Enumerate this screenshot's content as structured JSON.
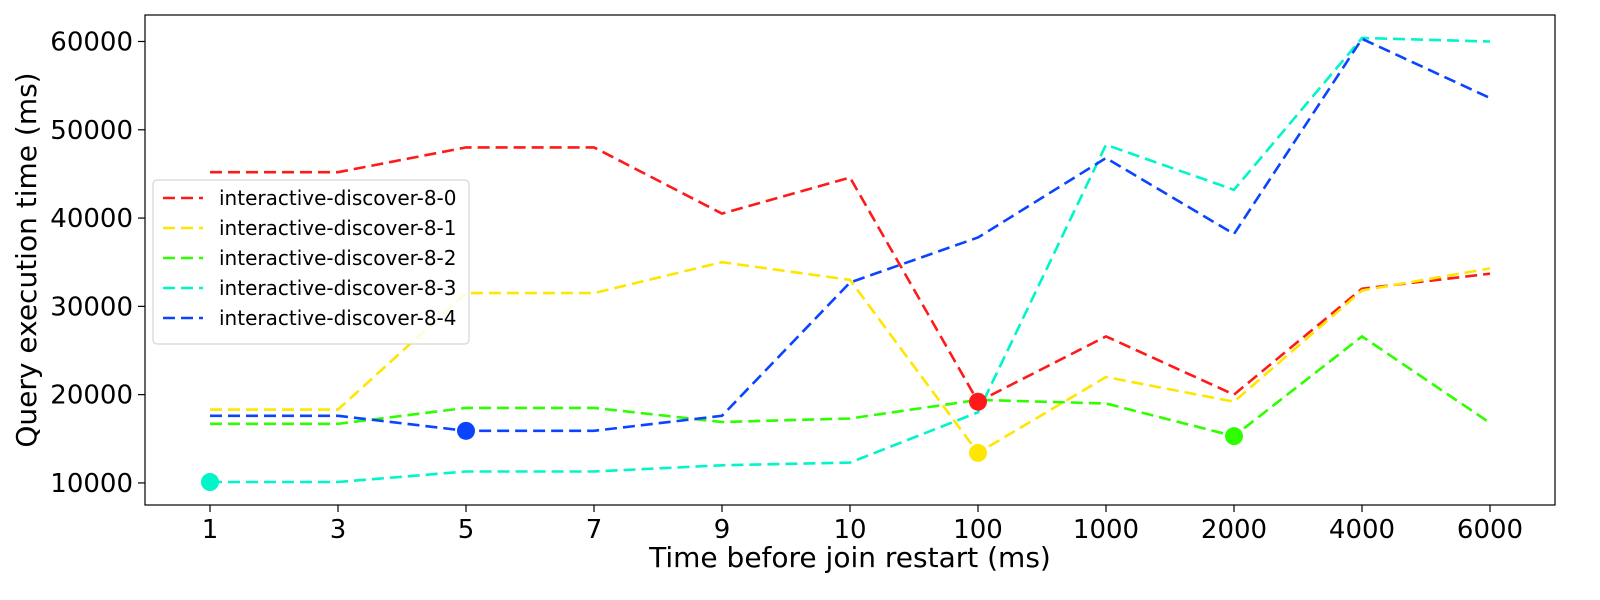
{
  "chart_data": {
    "type": "line",
    "xlabel": "Time before join restart (ms)",
    "ylabel": "Query execution time (ms)",
    "categories": [
      "1",
      "3",
      "5",
      "7",
      "9",
      "10",
      "100",
      "1000",
      "2000",
      "4000",
      "6000"
    ],
    "y_ticks": [
      10000,
      20000,
      30000,
      40000,
      50000,
      60000
    ],
    "ylim": [
      7500,
      63000
    ],
    "grid": false,
    "legend_position": "center-left",
    "series": [
      {
        "name": "interactive-discover-8-0",
        "color": "#ff1a1a",
        "values": [
          45200,
          45200,
          48000,
          48000,
          40500,
          44600,
          19200,
          26600,
          20000,
          32000,
          33700
        ],
        "marker_index": 6
      },
      {
        "name": "interactive-discover-8-1",
        "color": "#ffe600",
        "values": [
          18300,
          18300,
          31500,
          31500,
          35000,
          33000,
          13400,
          22000,
          19200,
          31800,
          34300
        ],
        "marker_index": 6
      },
      {
        "name": "interactive-discover-8-2",
        "color": "#2eff00",
        "values": [
          16700,
          16700,
          18500,
          18500,
          16900,
          17300,
          19400,
          19000,
          15300,
          26600,
          16800
        ],
        "marker_index": 8
      },
      {
        "name": "interactive-discover-8-3",
        "color": "#00f5c8",
        "values": [
          10100,
          10100,
          11300,
          11300,
          12000,
          12300,
          18000,
          48300,
          43200,
          60400,
          60000
        ],
        "marker_index": 0
      },
      {
        "name": "interactive-discover-8-4",
        "color": "#0a44ff",
        "values": [
          17600,
          17600,
          15900,
          15900,
          17600,
          32700,
          37800,
          46800,
          38200,
          60300,
          53600
        ],
        "marker_index": 2
      }
    ]
  }
}
